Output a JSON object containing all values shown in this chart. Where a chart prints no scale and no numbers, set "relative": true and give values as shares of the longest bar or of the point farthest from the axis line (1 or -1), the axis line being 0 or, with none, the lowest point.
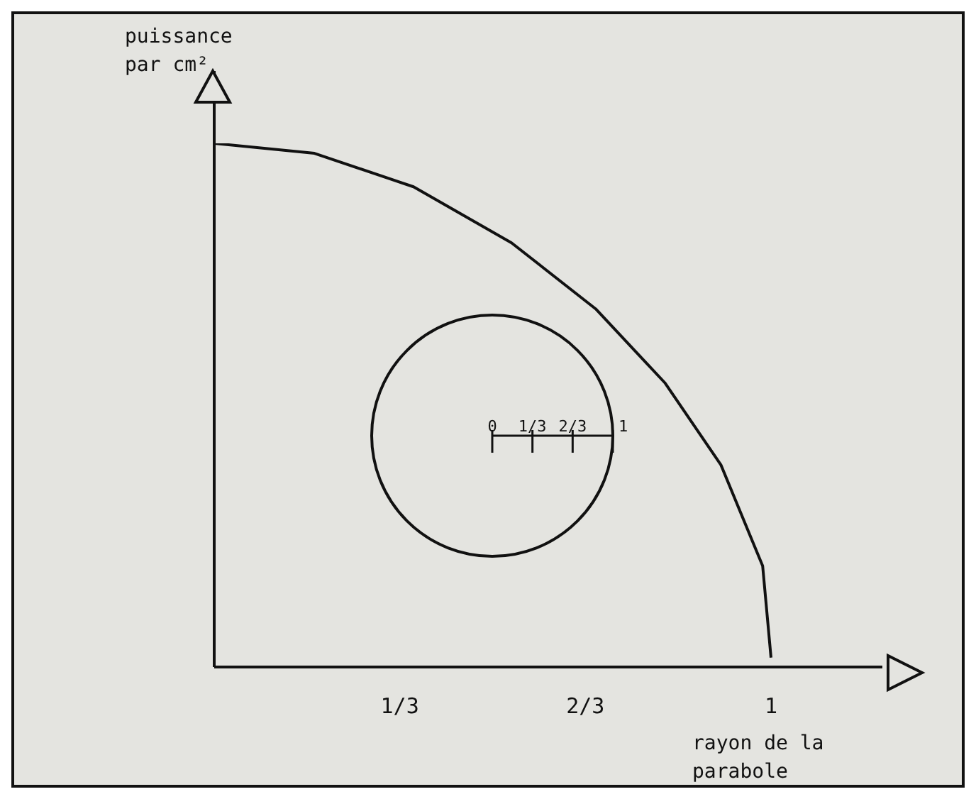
{
  "chart_data": {
    "type": "line",
    "relative": true,
    "xlabel": "rayon de la parabole",
    "ylabel": "puissance par cm²",
    "x": [
      0,
      0.18,
      0.358,
      0.534,
      0.685,
      0.81,
      0.91,
      0.985,
      1.0
    ],
    "series": [
      {
        "color": "#111111",
        "values": [
          1,
          0.981,
          0.917,
          0.81,
          0.684,
          0.542,
          0.386,
          0.193,
          0.018
        ]
      }
    ],
    "xlim": [
      0,
      1.2
    ],
    "xticks": [
      {
        "value": 0.3333,
        "label": "1/3"
      },
      {
        "value": 0.6667,
        "label": "2/3"
      },
      {
        "value": 1,
        "label": "1"
      }
    ],
    "marker": "none",
    "line_style": "solid",
    "annotations": [
      "0",
      "1/3",
      "2/3",
      "1"
    ]
  }
}
